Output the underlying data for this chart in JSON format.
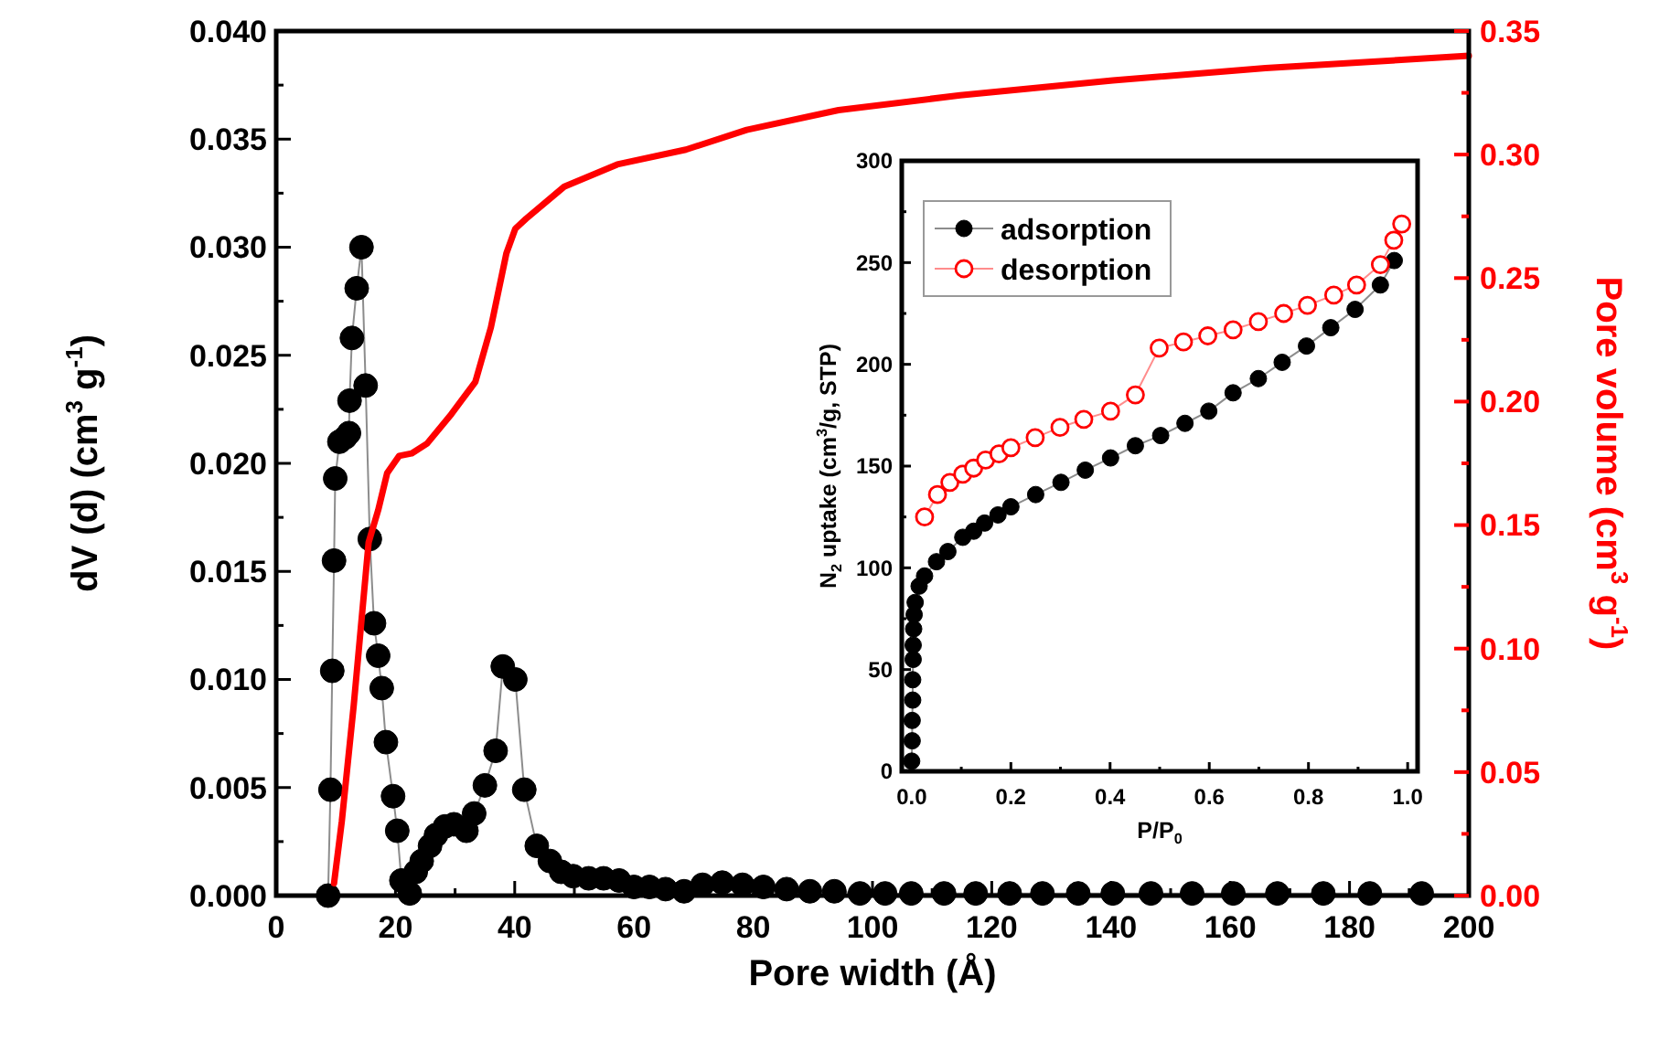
{
  "chart_data": [
    {
      "type": "line",
      "xlabel": "Pore width (Å)",
      "ylabel": "dV (d) (cm$^{3}$ g$^{-1}$)",
      "y2label": "Pore volume (cm$^{3}$ g$^{-1}$)",
      "xlim": [
        0,
        200
      ],
      "ylim": [
        0,
        0.04
      ],
      "y2lim": [
        0,
        0.35
      ],
      "xticks": [
        0,
        {
          "value": 10,
          "label": null
        },
        20,
        {
          "value": 30,
          "label": null
        },
        40,
        {
          "value": 50,
          "label": null
        },
        60,
        {
          "value": 70,
          "label": null
        },
        80,
        {
          "value": 90,
          "label": null
        },
        100,
        {
          "value": 110,
          "label": null
        },
        120,
        {
          "value": 130,
          "label": null
        },
        140,
        {
          "value": 150,
          "label": null
        },
        160,
        {
          "value": 170,
          "label": null
        },
        180,
        {
          "value": 190,
          "label": null
        },
        200
      ],
      "yticks": [
        {
          "value": 0,
          "label": "0.000"
        },
        {
          "value": 0.0025,
          "label": null
        },
        0.005,
        {
          "value": 0.0075,
          "label": null
        },
        {
          "value": 0.01,
          "label": "0.010"
        },
        {
          "value": 0.0125,
          "label": null
        },
        0.015,
        {
          "value": 0.0175,
          "label": null
        },
        {
          "value": 0.02,
          "label": "0.020"
        },
        {
          "value": 0.0225,
          "label": null
        },
        0.025,
        {
          "value": 0.0275,
          "label": null
        },
        {
          "value": 0.03,
          "label": "0.030"
        },
        {
          "value": 0.0325,
          "label": null
        },
        0.035,
        {
          "value": 0.0375,
          "label": null
        },
        {
          "value": 0.04,
          "label": "0.040"
        }
      ],
      "y2ticks": [
        {
          "value": 0,
          "label": "0.00"
        },
        {
          "value": 0.025,
          "label": null
        },
        0.05,
        {
          "value": 0.075,
          "label": null
        },
        {
          "value": 0.1,
          "label": "0.10"
        },
        {
          "value": 0.125,
          "label": null
        },
        0.15,
        {
          "value": 0.175,
          "label": null
        },
        {
          "value": 0.2,
          "label": "0.20"
        },
        {
          "value": 0.225,
          "label": null
        },
        0.25,
        {
          "value": 0.275,
          "label": null
        },
        {
          "value": 0.3,
          "label": "0.30"
        },
        {
          "value": 0.325,
          "label": null
        },
        0.35
      ],
      "series": [
        {
          "color": "#000000",
          "marker": "circle",
          "x": [
            8.7,
            9.1,
            9.4,
            9.7,
            9.9,
            10.6,
            11.6,
            12.2,
            12.3,
            12.7,
            13.5,
            14.3,
            15.0,
            15.7,
            16.4,
            17.1,
            17.7,
            18.4,
            19.6,
            20.3,
            21.0,
            22.4,
            23.4,
            24.4,
            25.8,
            26.8,
            28.3,
            29.8,
            31.9,
            33.2,
            35.0,
            36.8,
            38.0,
            40.1,
            41.6,
            43.7,
            45.9,
            47.8,
            49.8,
            52.4,
            54.9,
            57.5,
            60.0,
            62.6,
            65.3,
            68.4,
            71.5,
            74.8,
            78.2,
            81.7,
            85.6,
            89.5,
            93.6,
            97.9,
            102.1,
            106.5,
            112.0,
            117.3,
            123.0,
            128.5,
            134.5,
            140.3,
            146.7,
            153.6,
            160.5,
            167.9,
            175.6,
            183.4,
            192.1
          ],
          "values": [
            0,
            0.0049,
            0.0104,
            0.0155,
            0.0193,
            0.021,
            0.0212,
            0.0214,
            0.0229,
            0.0258,
            0.0281,
            0.03,
            0.0236,
            0.0165,
            0.0126,
            0.0111,
            0.0096,
            0.0071,
            0.0046,
            0.003,
            0.0007,
            0.0001,
            0.0011,
            0.0016,
            0.0023,
            0.0028,
            0.0032,
            0.0033,
            0.003,
            0.0038,
            0.0051,
            0.0067,
            0.0106,
            0.01,
            0.0049,
            0.0023,
            0.0016,
            0.0011,
            0.0009,
            0.0008,
            0.0008,
            0.0007,
            0.0004,
            0.0004,
            0.0003,
            0.0002,
            0.0005,
            0.0006,
            0.0005,
            0.0004,
            0.0003,
            0.0002,
            0.0002,
            0.0001,
            0.0001,
            0.0001,
            0.0001,
            0.0001,
            0.0001,
            0.0001,
            0.0001,
            0.0001,
            0.0001,
            0.0001,
            0.0001,
            0.0001,
            0.0001,
            0.0001,
            0.0001
          ]
        },
        {
          "color": "#ff0000",
          "marker": "none",
          "axis": "y2",
          "x": [
            9.7,
            11,
            13,
            15.5,
            17.1,
            18.6,
            20.6,
            22.7,
            25.3,
            29.4,
            33.4,
            36,
            38.6,
            40.1,
            41.9,
            48.3,
            57.2,
            68.7,
            78.9,
            94.3,
            114.7,
            140.3,
            165.9,
            200
          ],
          "values": [
            0.005,
            0.03,
            0.077,
            0.143,
            0.156,
            0.171,
            0.178,
            0.179,
            0.183,
            0.195,
            0.208,
            0.23,
            0.26,
            0.27,
            0.274,
            0.287,
            0.296,
            0.302,
            0.31,
            0.318,
            0.324,
            0.33,
            0.335,
            0.34
          ]
        }
      ]
    },
    {
      "type": "line",
      "xlabel": "P/P$_{0}$",
      "ylabel": "N$_{2}$ uptake (cm$^{3}$/g, STP)",
      "legend": "top left",
      "xlim": [
        -0.02,
        1.02
      ],
      "ylim": [
        0,
        300
      ],
      "xticks": [
        {
          "value": 0,
          "label": "0.0"
        },
        {
          "value": 0.1,
          "label": null
        },
        0.2,
        {
          "value": 0.3,
          "label": null
        },
        0.4,
        {
          "value": 0.5,
          "label": null
        },
        0.6,
        {
          "value": 0.7,
          "label": null
        },
        0.8,
        {
          "value": 0.9,
          "label": null
        },
        {
          "value": 1,
          "label": "1.0"
        }
      ],
      "yticks": [
        0,
        {
          "value": 25,
          "label": null
        },
        50,
        {
          "value": 75,
          "label": null
        },
        100,
        {
          "value": 125,
          "label": null
        },
        150,
        {
          "value": 175,
          "label": null
        },
        200,
        {
          "value": 225,
          "label": null
        },
        250,
        {
          "value": 275,
          "label": null
        },
        300
      ],
      "series": [
        {
          "name": "adsorption",
          "color": "#000000",
          "marker": "circle",
          "x": [
            0,
            0.001,
            0.001,
            0.002,
            0.002,
            0.003,
            0.003,
            0.004,
            0.005,
            0.007,
            0.01,
            0.015,
            0.026,
            0.05,
            0.073,
            0.103,
            0.125,
            0.147,
            0.174,
            0.2,
            0.25,
            0.301,
            0.35,
            0.401,
            0.451,
            0.502,
            0.551,
            0.599,
            0.648,
            0.699,
            0.747,
            0.796,
            0.845,
            0.894,
            0.945,
            0.973
          ],
          "values": [
            5,
            15,
            25,
            35,
            45,
            55,
            62,
            70,
            77,
            83,
            null,
            91,
            96,
            103,
            108,
            115,
            118,
            122,
            126,
            130,
            136,
            142,
            148,
            154,
            160,
            165,
            171,
            177,
            186,
            193,
            201,
            209,
            218,
            227,
            239,
            251
          ]
        },
        {
          "name": "desorption",
          "color": "#ff0000",
          "marker": "circle",
          "x": [
            0.026,
            0.052,
            0.077,
            0.103,
            0.125,
            0.149,
            0.176,
            0.2,
            0.249,
            0.299,
            0.347,
            0.401,
            0.451,
            0.499,
            0.548,
            0.597,
            0.648,
            0.699,
            0.75,
            0.798,
            0.851,
            0.897,
            0.945,
            0.972,
            0.988
          ],
          "values": [
            125,
            136,
            142,
            146,
            149,
            153,
            156,
            159,
            164,
            169,
            173,
            177,
            185,
            208,
            211,
            214,
            217,
            221,
            225,
            229,
            234,
            239,
            249,
            261,
            269
          ]
        }
      ]
    }
  ]
}
